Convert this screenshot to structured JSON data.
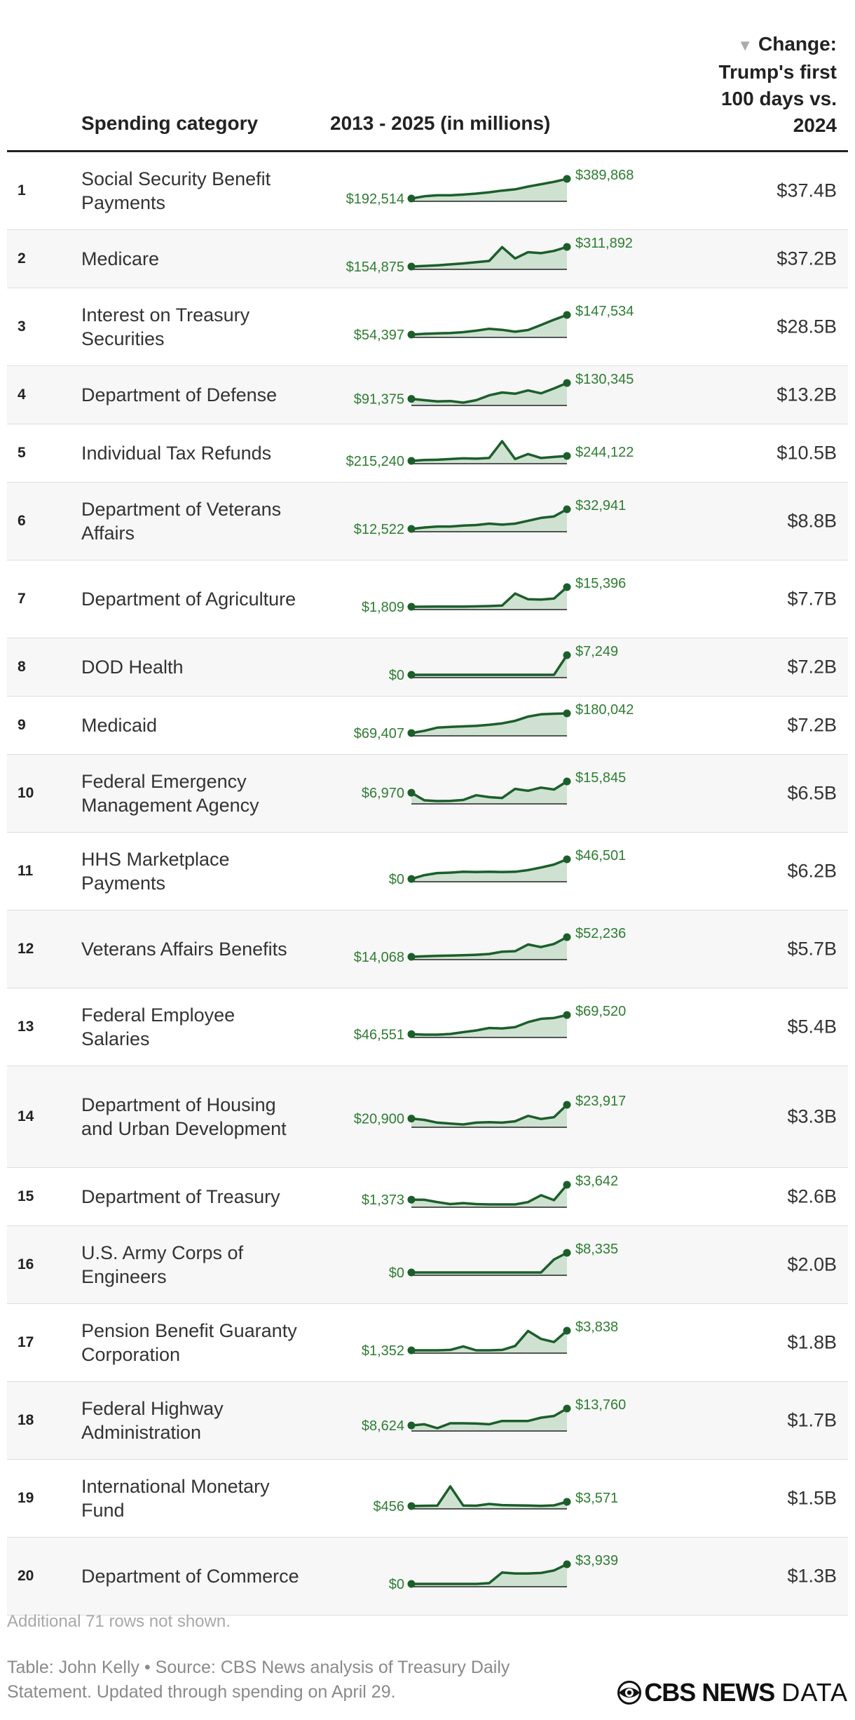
{
  "header": {
    "category": "Spending category",
    "trend": "2013 - 2025 (in millions)",
    "change_lines": [
      "Change:",
      "Trump's first",
      "100 days vs.",
      "2024"
    ],
    "sort_icon": "sort-down-triangle-icon"
  },
  "chart_data": {
    "type": "table",
    "columns": [
      "Spending category",
      "2013 - 2025 (in millions)",
      "Change: Trump's first 100 days vs. 2024"
    ],
    "years": [
      2013,
      2014,
      2015,
      2016,
      2017,
      2018,
      2019,
      2020,
      2021,
      2022,
      2023,
      2024,
      2025
    ],
    "colors": {
      "line": "#1c5e2a",
      "area": "#cfe2d2",
      "label": "#2e7d32",
      "baseline": "#222222"
    },
    "rows": [
      {
        "rank": "1",
        "category": "Social Security Benefit Payments",
        "first_label": "$192,514",
        "last_label": "$389,868",
        "change": "$37.4B",
        "values": [
          192514,
          215000,
          225000,
          225000,
          232000,
          242000,
          255000,
          272000,
          285000,
          312000,
          336000,
          360000,
          389868
        ]
      },
      {
        "rank": "2",
        "category": "Medicare",
        "first_label": "$154,875",
        "last_label": "$311,892",
        "change": "$37.2B",
        "values": [
          154875,
          160000,
          165000,
          172000,
          180000,
          190000,
          200000,
          310000,
          220000,
          270000,
          262000,
          280000,
          311892
        ]
      },
      {
        "rank": "3",
        "category": "Interest on Treasury Securities",
        "first_label": "$54,397",
        "last_label": "$147,534",
        "change": "$28.5B",
        "values": [
          54397,
          58000,
          60000,
          62000,
          66000,
          73000,
          82000,
          77000,
          68000,
          76000,
          100000,
          125000,
          147534
        ]
      },
      {
        "rank": "4",
        "category": "Department of Defense",
        "first_label": "$91,375",
        "last_label": "$130,345",
        "change": "$13.2B",
        "values": [
          91375,
          88000,
          85000,
          86000,
          82000,
          88000,
          100000,
          107000,
          104000,
          112000,
          105000,
          117000,
          130345
        ]
      },
      {
        "rank": "5",
        "category": "Individual Tax Refunds",
        "first_label": "$215,240",
        "last_label": "$244,122",
        "change": "$10.5B",
        "values": [
          215240,
          220000,
          222000,
          226000,
          230000,
          228000,
          232000,
          330000,
          226000,
          255000,
          232000,
          238000,
          244122
        ]
      },
      {
        "rank": "6",
        "category": "Department of Veterans Affairs",
        "first_label": "$12,522",
        "last_label": "$32,941",
        "change": "$8.8B",
        "values": [
          12522,
          14000,
          15000,
          15000,
          16000,
          16500,
          18000,
          17000,
          18000,
          21000,
          24000,
          25500,
          32941
        ]
      },
      {
        "rank": "7",
        "category": "Department of Agriculture",
        "first_label": "$1,809",
        "last_label": "$15,396",
        "change": "$7.7B",
        "values": [
          1809,
          1850,
          1900,
          1900,
          1950,
          2100,
          2300,
          2700,
          11000,
          7000,
          6800,
          7500,
          15396
        ]
      },
      {
        "rank": "8",
        "category": "DOD Health",
        "first_label": "$0",
        "last_label": "$7,249",
        "change": "$7.2B",
        "values": [
          0,
          0,
          0,
          0,
          0,
          0,
          0,
          0,
          0,
          0,
          0,
          0,
          7249
        ]
      },
      {
        "rank": "9",
        "category": "Medicaid",
        "first_label": "$69,407",
        "last_label": "$180,042",
        "change": "$7.2B",
        "values": [
          69407,
          82000,
          100000,
          104000,
          107000,
          110000,
          116000,
          124000,
          138000,
          162000,
          175000,
          178000,
          180042
        ]
      },
      {
        "rank": "10",
        "category": "Federal Emergency Management Agency",
        "first_label": "$6,970",
        "last_label": "$15,845",
        "change": "$6.5B",
        "values": [
          6970,
          1000,
          400,
          500,
          1300,
          5000,
          3500,
          2800,
          10000,
          8500,
          11000,
          9500,
          15845
        ]
      },
      {
        "rank": "11",
        "category": "HHS Marketplace Payments",
        "first_label": "$0",
        "last_label": "$46,501",
        "change": "$6.2B",
        "values": [
          0,
          9000,
          14000,
          15000,
          17000,
          16500,
          17000,
          16500,
          17000,
          21000,
          27000,
          34000,
          46501
        ]
      },
      {
        "rank": "12",
        "category": "Veterans Affairs Benefits",
        "first_label": "$14,068",
        "last_label": "$52,236",
        "change": "$5.7B",
        "values": [
          14068,
          15000,
          16000,
          16500,
          17000,
          18000,
          19500,
          24000,
          25000,
          38000,
          33000,
          39000,
          52236
        ]
      },
      {
        "rank": "13",
        "category": "Federal Employee Salaries",
        "first_label": "$46,551",
        "last_label": "$69,520",
        "change": "$5.4B",
        "values": [
          46551,
          46000,
          46000,
          46800,
          49000,
          51000,
          54000,
          53500,
          55000,
          61000,
          65000,
          66000,
          69520
        ]
      },
      {
        "rank": "14",
        "category": "Department of Housing and Urban Development",
        "first_label": "$20,900",
        "last_label": "$23,917",
        "change": "$3.3B",
        "values": [
          20900,
          20600,
          20000,
          19800,
          19600,
          20000,
          20100,
          20000,
          20300,
          21500,
          20800,
          21200,
          23917
        ]
      },
      {
        "rank": "15",
        "category": "Department of Treasury",
        "first_label": "$1,373",
        "last_label": "$3,642",
        "change": "$2.6B",
        "values": [
          1373,
          1350,
          1000,
          700,
          850,
          700,
          650,
          650,
          650,
          1000,
          2050,
          1300,
          3642
        ]
      },
      {
        "rank": "16",
        "category": "U.S. Army Corps of Engineers",
        "first_label": "$0",
        "last_label": "$8,335",
        "change": "$2.0B",
        "values": [
          0,
          0,
          0,
          0,
          0,
          0,
          0,
          0,
          0,
          0,
          0,
          5500,
          8335
        ]
      },
      {
        "rank": "17",
        "category": "Pension Benefit Guaranty Corporation",
        "first_label": "$1,352",
        "last_label": "$3,838",
        "change": "$1.8B",
        "values": [
          1352,
          1350,
          1350,
          1400,
          1850,
          1350,
          1350,
          1400,
          1900,
          3800,
          2800,
          2400,
          3838
        ]
      },
      {
        "rank": "18",
        "category": "Federal Highway Administration",
        "first_label": "$8,624",
        "last_label": "$13,760",
        "change": "$1.7B",
        "values": [
          8624,
          9000,
          7800,
          9300,
          9300,
          9200,
          9000,
          10000,
          10000,
          10000,
          11000,
          11500,
          13760
        ]
      },
      {
        "rank": "19",
        "category": "International Monetary Fund",
        "first_label": "$456",
        "last_label": "$3,571",
        "change": "$1.5B",
        "values": [
          456,
          650,
          750,
          15000,
          800,
          700,
          2000,
          1200,
          1000,
          800,
          600,
          1000,
          3571
        ]
      },
      {
        "rank": "20",
        "category": "Department of Commerce",
        "first_label": "$0",
        "last_label": "$3,939",
        "change": "$1.3B",
        "values": [
          0,
          0,
          0,
          0,
          0,
          0,
          150,
          2300,
          2100,
          2100,
          2200,
          2700,
          3939
        ]
      }
    ]
  },
  "footer": {
    "note": "Additional 71 rows not shown.",
    "source": "Table: John Kelly • Source: CBS News analysis of Treasury Daily Statement. Updated through spending on April 29.",
    "logo": {
      "icon": "cbs-eye-icon",
      "brand": "CBS NEWS",
      "suffix": "DATA"
    }
  }
}
